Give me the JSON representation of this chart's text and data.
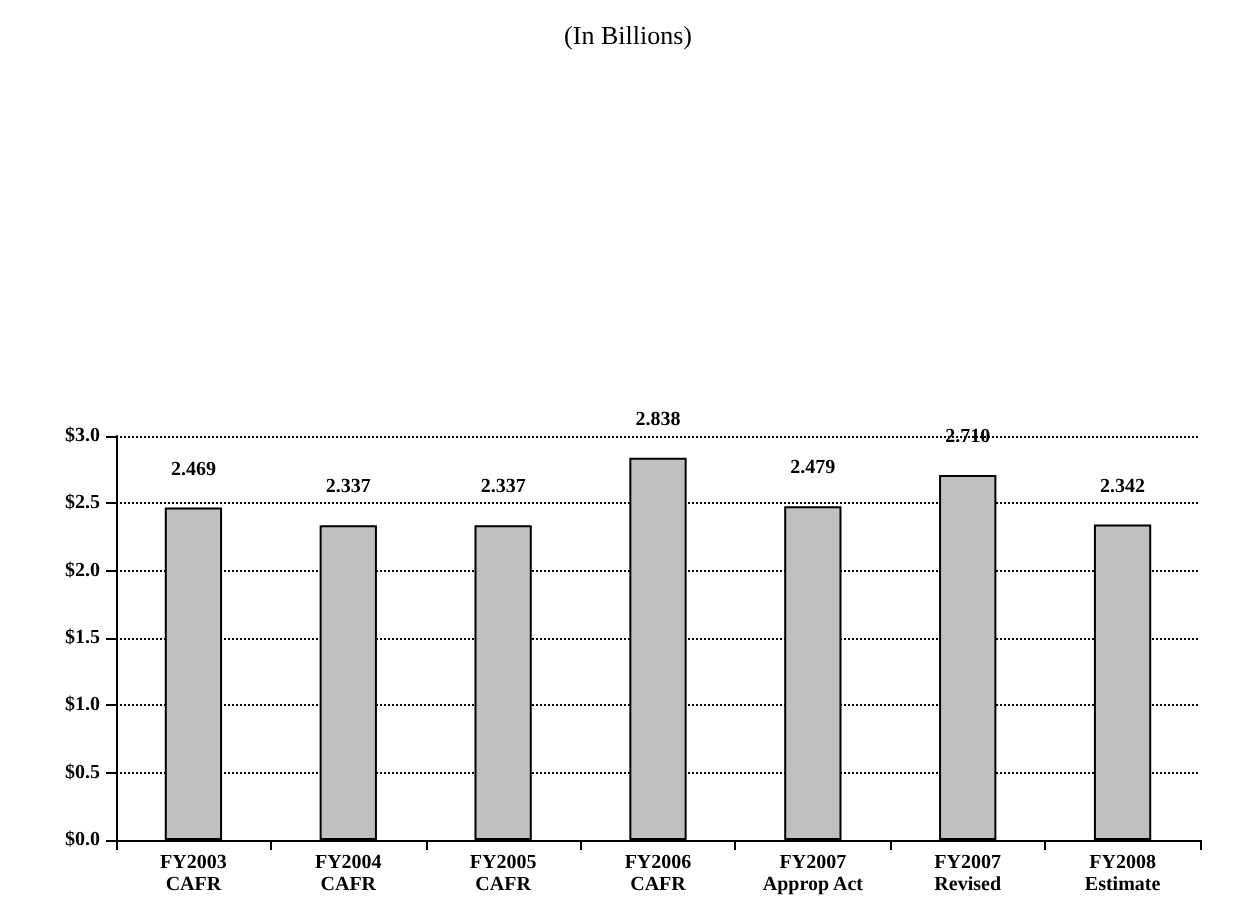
{
  "chart_data": {
    "type": "bar",
    "title": "(In Billions)",
    "categories": [
      "FY2003\nCAFR",
      "FY2004\nCAFR",
      "FY2005\nCAFR",
      "FY2006\nCAFR",
      "FY2007\nApprop Act",
      "FY2007\nRevised",
      "FY2008\nEstimate"
    ],
    "values": [
      2.469,
      2.337,
      2.337,
      2.838,
      2.479,
      2.71,
      2.342
    ],
    "value_labels": [
      "2.469",
      "2.337",
      "2.337",
      "2.838",
      "2.479",
      "2.710",
      "2.342"
    ],
    "color": "#c0c0c0",
    "ylim": [
      0,
      3
    ],
    "yticks": [
      {
        "value": 0,
        "label": "$0.0"
      },
      {
        "value": 0.5,
        "label": "$0.5"
      },
      {
        "value": 1,
        "label": "$1.0"
      },
      {
        "value": 1.5,
        "label": "$1.5"
      },
      {
        "value": 2,
        "label": "$2.0"
      },
      {
        "value": 2.5,
        "label": "$2.5"
      },
      {
        "value": 3,
        "label": "$3.0"
      }
    ],
    "grid": "y",
    "line_style": "dotted"
  }
}
